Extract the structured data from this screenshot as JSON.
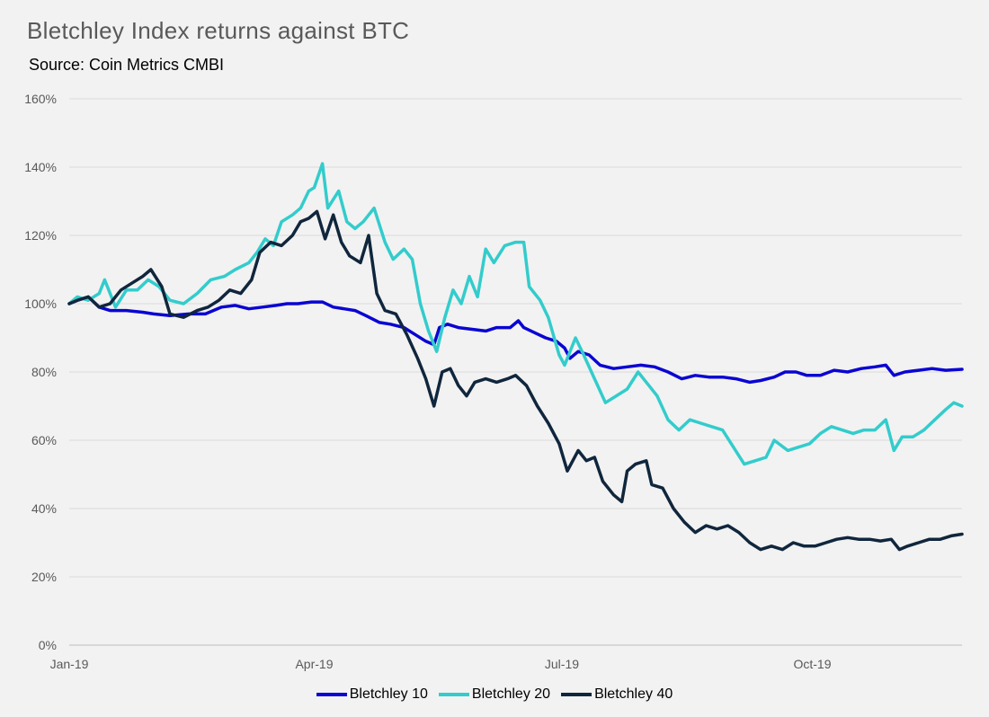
{
  "chart_data": {
    "type": "line",
    "title": "Bletchley Index returns against BTC",
    "subtitle": "Source: Coin Metrics CMBI",
    "xlabel": "",
    "ylabel": "",
    "x_domain": [
      "2019-01-01",
      "2019-11-25"
    ],
    "ylim": [
      0,
      160
    ],
    "yticks": [
      0,
      20,
      40,
      60,
      80,
      100,
      120,
      140,
      160
    ],
    "ytick_labels": [
      "0%",
      "20%",
      "40%",
      "60%",
      "80%",
      "100%",
      "120%",
      "140%",
      "160%"
    ],
    "xticks": [
      "2019-01-01",
      "2019-04-01",
      "2019-07-01",
      "2019-10-01"
    ],
    "xtick_labels": [
      "Jan-19",
      "Apr-19",
      "Jul-19",
      "Oct-19"
    ],
    "grid": "horizontal",
    "legend_position": "bottom",
    "series": [
      {
        "name": "Bletchley 10",
        "color": "#0a05d2",
        "points": [
          [
            "2019-01-01",
            100
          ],
          [
            "2019-01-04",
            101
          ],
          [
            "2019-01-08",
            102
          ],
          [
            "2019-01-12",
            99
          ],
          [
            "2019-01-16",
            98
          ],
          [
            "2019-01-22",
            98
          ],
          [
            "2019-01-28",
            97.5
          ],
          [
            "2019-02-01",
            97
          ],
          [
            "2019-02-07",
            96.5
          ],
          [
            "2019-02-14",
            97
          ],
          [
            "2019-02-20",
            97
          ],
          [
            "2019-02-26",
            99
          ],
          [
            "2019-03-03",
            99.5
          ],
          [
            "2019-03-08",
            98.5
          ],
          [
            "2019-03-13",
            99
          ],
          [
            "2019-03-18",
            99.5
          ],
          [
            "2019-03-22",
            100
          ],
          [
            "2019-03-26",
            100
          ],
          [
            "2019-03-31",
            100.5
          ],
          [
            "2019-04-04",
            100.5
          ],
          [
            "2019-04-08",
            99
          ],
          [
            "2019-04-12",
            98.5
          ],
          [
            "2019-04-16",
            98
          ],
          [
            "2019-04-20",
            96.5
          ],
          [
            "2019-04-25",
            94.5
          ],
          [
            "2019-04-29",
            94
          ],
          [
            "2019-05-04",
            93
          ],
          [
            "2019-05-08",
            91
          ],
          [
            "2019-05-12",
            89
          ],
          [
            "2019-05-15",
            88
          ],
          [
            "2019-05-17",
            93
          ],
          [
            "2019-05-20",
            94
          ],
          [
            "2019-05-24",
            93
          ],
          [
            "2019-05-29",
            92.5
          ],
          [
            "2019-06-03",
            92
          ],
          [
            "2019-06-07",
            93
          ],
          [
            "2019-06-12",
            93
          ],
          [
            "2019-06-15",
            95
          ],
          [
            "2019-06-17",
            93
          ],
          [
            "2019-06-21",
            91.5
          ],
          [
            "2019-06-25",
            90
          ],
          [
            "2019-06-29",
            89
          ],
          [
            "2019-07-02",
            87
          ],
          [
            "2019-07-04",
            84
          ],
          [
            "2019-07-07",
            86
          ],
          [
            "2019-07-11",
            85
          ],
          [
            "2019-07-15",
            82
          ],
          [
            "2019-07-20",
            81
          ],
          [
            "2019-07-25",
            81.5
          ],
          [
            "2019-07-30",
            82
          ],
          [
            "2019-08-04",
            81.5
          ],
          [
            "2019-08-09",
            80
          ],
          [
            "2019-08-14",
            78
          ],
          [
            "2019-08-19",
            79
          ],
          [
            "2019-08-24",
            78.5
          ],
          [
            "2019-08-29",
            78.5
          ],
          [
            "2019-09-03",
            78
          ],
          [
            "2019-09-08",
            77
          ],
          [
            "2019-09-12",
            77.5
          ],
          [
            "2019-09-17",
            78.5
          ],
          [
            "2019-09-21",
            80
          ],
          [
            "2019-09-25",
            80
          ],
          [
            "2019-09-29",
            79
          ],
          [
            "2019-10-04",
            79
          ],
          [
            "2019-10-09",
            80.5
          ],
          [
            "2019-10-14",
            80
          ],
          [
            "2019-10-19",
            81
          ],
          [
            "2019-10-24",
            81.5
          ],
          [
            "2019-10-28",
            82
          ],
          [
            "2019-10-31",
            79
          ],
          [
            "2019-11-04",
            80
          ],
          [
            "2019-11-09",
            80.5
          ],
          [
            "2019-11-14",
            81
          ],
          [
            "2019-11-19",
            80.5
          ],
          [
            "2019-11-25",
            80.8
          ]
        ]
      },
      {
        "name": "Bletchley 20",
        "color": "#33cccc",
        "points": [
          [
            "2019-01-01",
            100
          ],
          [
            "2019-01-04",
            102
          ],
          [
            "2019-01-08",
            101
          ],
          [
            "2019-01-12",
            103
          ],
          [
            "2019-01-14",
            107
          ],
          [
            "2019-01-18",
            99
          ],
          [
            "2019-01-22",
            104
          ],
          [
            "2019-01-26",
            104
          ],
          [
            "2019-01-30",
            107
          ],
          [
            "2019-02-03",
            105
          ],
          [
            "2019-02-07",
            101
          ],
          [
            "2019-02-12",
            100
          ],
          [
            "2019-02-17",
            103
          ],
          [
            "2019-02-22",
            107
          ],
          [
            "2019-02-27",
            108
          ],
          [
            "2019-03-03",
            110
          ],
          [
            "2019-03-08",
            112
          ],
          [
            "2019-03-11",
            115
          ],
          [
            "2019-03-14",
            119
          ],
          [
            "2019-03-17",
            117
          ],
          [
            "2019-03-20",
            124
          ],
          [
            "2019-03-24",
            126
          ],
          [
            "2019-03-27",
            128
          ],
          [
            "2019-03-30",
            133
          ],
          [
            "2019-04-01",
            134
          ],
          [
            "2019-04-04",
            141
          ],
          [
            "2019-04-06",
            128
          ],
          [
            "2019-04-10",
            133
          ],
          [
            "2019-04-13",
            124
          ],
          [
            "2019-04-16",
            122
          ],
          [
            "2019-04-19",
            124
          ],
          [
            "2019-04-23",
            128
          ],
          [
            "2019-04-27",
            118
          ],
          [
            "2019-04-30",
            113
          ],
          [
            "2019-05-04",
            116
          ],
          [
            "2019-05-07",
            113
          ],
          [
            "2019-05-10",
            100
          ],
          [
            "2019-05-13",
            92
          ],
          [
            "2019-05-16",
            86
          ],
          [
            "2019-05-19",
            96
          ],
          [
            "2019-05-22",
            104
          ],
          [
            "2019-05-25",
            100
          ],
          [
            "2019-05-28",
            108
          ],
          [
            "2019-05-31",
            102
          ],
          [
            "2019-06-03",
            116
          ],
          [
            "2019-06-06",
            112
          ],
          [
            "2019-06-10",
            117
          ],
          [
            "2019-06-14",
            118
          ],
          [
            "2019-06-17",
            118
          ],
          [
            "2019-06-19",
            105
          ],
          [
            "2019-06-23",
            101
          ],
          [
            "2019-06-26",
            96
          ],
          [
            "2019-06-30",
            85
          ],
          [
            "2019-07-02",
            82
          ],
          [
            "2019-07-06",
            90
          ],
          [
            "2019-07-09",
            85
          ],
          [
            "2019-07-13",
            78
          ],
          [
            "2019-07-17",
            71
          ],
          [
            "2019-07-21",
            73
          ],
          [
            "2019-07-25",
            75
          ],
          [
            "2019-07-29",
            80
          ],
          [
            "2019-08-02",
            76
          ],
          [
            "2019-08-05",
            73
          ],
          [
            "2019-08-09",
            66
          ],
          [
            "2019-08-13",
            63
          ],
          [
            "2019-08-17",
            66
          ],
          [
            "2019-08-21",
            65
          ],
          [
            "2019-08-25",
            64
          ],
          [
            "2019-08-29",
            63
          ],
          [
            "2019-09-02",
            58
          ],
          [
            "2019-09-06",
            53
          ],
          [
            "2019-09-10",
            54
          ],
          [
            "2019-09-14",
            55
          ],
          [
            "2019-09-17",
            60
          ],
          [
            "2019-09-22",
            57
          ],
          [
            "2019-09-26",
            58
          ],
          [
            "2019-09-30",
            59
          ],
          [
            "2019-10-04",
            62
          ],
          [
            "2019-10-08",
            64
          ],
          [
            "2019-10-12",
            63
          ],
          [
            "2019-10-16",
            62
          ],
          [
            "2019-10-20",
            63
          ],
          [
            "2019-10-24",
            63
          ],
          [
            "2019-10-28",
            66
          ],
          [
            "2019-10-31",
            57
          ],
          [
            "2019-11-03",
            61
          ],
          [
            "2019-11-07",
            61
          ],
          [
            "2019-11-11",
            63
          ],
          [
            "2019-11-15",
            66
          ],
          [
            "2019-11-19",
            69
          ],
          [
            "2019-11-22",
            71
          ],
          [
            "2019-11-25",
            70
          ]
        ]
      },
      {
        "name": "Bletchley 40",
        "color": "#10263d",
        "points": [
          [
            "2019-01-01",
            100
          ],
          [
            "2019-01-04",
            101
          ],
          [
            "2019-01-08",
            102
          ],
          [
            "2019-01-12",
            99
          ],
          [
            "2019-01-16",
            100
          ],
          [
            "2019-01-20",
            104
          ],
          [
            "2019-01-24",
            106
          ],
          [
            "2019-01-28",
            108
          ],
          [
            "2019-01-31",
            110
          ],
          [
            "2019-02-04",
            105
          ],
          [
            "2019-02-07",
            97
          ],
          [
            "2019-02-12",
            96
          ],
          [
            "2019-02-17",
            98
          ],
          [
            "2019-02-21",
            99
          ],
          [
            "2019-02-25",
            101
          ],
          [
            "2019-03-01",
            104
          ],
          [
            "2019-03-05",
            103
          ],
          [
            "2019-03-09",
            107
          ],
          [
            "2019-03-12",
            115
          ],
          [
            "2019-03-16",
            118
          ],
          [
            "2019-03-20",
            117
          ],
          [
            "2019-03-24",
            120
          ],
          [
            "2019-03-27",
            124
          ],
          [
            "2019-03-30",
            125
          ],
          [
            "2019-04-02",
            127
          ],
          [
            "2019-04-05",
            119
          ],
          [
            "2019-04-08",
            126
          ],
          [
            "2019-04-11",
            118
          ],
          [
            "2019-04-14",
            114
          ],
          [
            "2019-04-18",
            112
          ],
          [
            "2019-04-21",
            120
          ],
          [
            "2019-04-24",
            103
          ],
          [
            "2019-04-27",
            98
          ],
          [
            "2019-05-01",
            97
          ],
          [
            "2019-05-05",
            91
          ],
          [
            "2019-05-09",
            84
          ],
          [
            "2019-05-12",
            78
          ],
          [
            "2019-05-15",
            70
          ],
          [
            "2019-05-18",
            80
          ],
          [
            "2019-05-21",
            81
          ],
          [
            "2019-05-24",
            76
          ],
          [
            "2019-05-27",
            73
          ],
          [
            "2019-05-30",
            77
          ],
          [
            "2019-06-03",
            78
          ],
          [
            "2019-06-07",
            77
          ],
          [
            "2019-06-11",
            78
          ],
          [
            "2019-06-14",
            79
          ],
          [
            "2019-06-18",
            76
          ],
          [
            "2019-06-22",
            70
          ],
          [
            "2019-06-26",
            65
          ],
          [
            "2019-06-30",
            59
          ],
          [
            "2019-07-03",
            51
          ],
          [
            "2019-07-07",
            57
          ],
          [
            "2019-07-10",
            54
          ],
          [
            "2019-07-13",
            55
          ],
          [
            "2019-07-16",
            48
          ],
          [
            "2019-07-20",
            44
          ],
          [
            "2019-07-23",
            42
          ],
          [
            "2019-07-25",
            51
          ],
          [
            "2019-07-28",
            53
          ],
          [
            "2019-08-01",
            54
          ],
          [
            "2019-08-03",
            47
          ],
          [
            "2019-08-07",
            46
          ],
          [
            "2019-08-11",
            40
          ],
          [
            "2019-08-15",
            36
          ],
          [
            "2019-08-19",
            33
          ],
          [
            "2019-08-23",
            35
          ],
          [
            "2019-08-27",
            34
          ],
          [
            "2019-08-31",
            35
          ],
          [
            "2019-09-04",
            33
          ],
          [
            "2019-09-08",
            30
          ],
          [
            "2019-09-12",
            28
          ],
          [
            "2019-09-16",
            29
          ],
          [
            "2019-09-20",
            28
          ],
          [
            "2019-09-24",
            30
          ],
          [
            "2019-09-28",
            29
          ],
          [
            "2019-10-02",
            29
          ],
          [
            "2019-10-06",
            30
          ],
          [
            "2019-10-10",
            31
          ],
          [
            "2019-10-14",
            31.5
          ],
          [
            "2019-10-18",
            31
          ],
          [
            "2019-10-22",
            31
          ],
          [
            "2019-10-26",
            30.5
          ],
          [
            "2019-10-30",
            31
          ],
          [
            "2019-11-02",
            28
          ],
          [
            "2019-11-05",
            29
          ],
          [
            "2019-11-09",
            30
          ],
          [
            "2019-11-13",
            31
          ],
          [
            "2019-11-17",
            31
          ],
          [
            "2019-11-21",
            32
          ],
          [
            "2019-11-25",
            32.5
          ]
        ]
      }
    ]
  }
}
